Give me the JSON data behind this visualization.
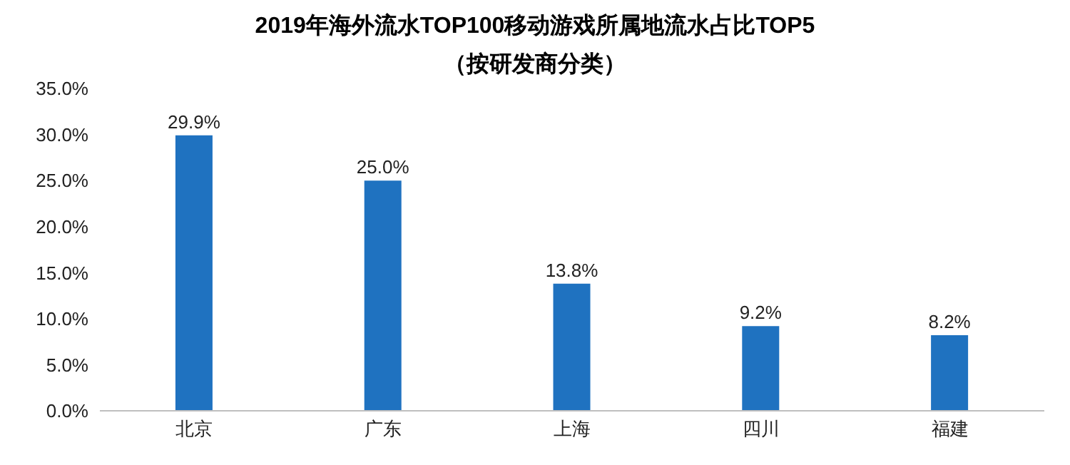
{
  "chart_data": {
    "type": "bar",
    "title": "2019年海外流水TOP100移动游戏所属地流水占比TOP5",
    "subtitle": "（按研发商分类）",
    "categories": [
      "北京",
      "广东",
      "上海",
      "四川",
      "福建"
    ],
    "values": [
      29.9,
      25.0,
      13.8,
      9.2,
      8.2
    ],
    "value_labels": [
      "29.9%",
      "25.0%",
      "13.8%",
      "9.2%",
      "8.2%"
    ],
    "color": "#1f72c0",
    "ylim": [
      0,
      35
    ],
    "yticks": [
      {
        "value": 0,
        "label": "0.0%"
      },
      {
        "value": 5,
        "label": "5.0%"
      },
      {
        "value": 10,
        "label": "10.0%"
      },
      {
        "value": 15,
        "label": "15.0%"
      },
      {
        "value": 20,
        "label": "20.0%"
      },
      {
        "value": 25,
        "label": "25.0%"
      },
      {
        "value": 30,
        "label": "30.0%"
      },
      {
        "value": 35,
        "label": "35.0%"
      }
    ],
    "grid": false
  }
}
